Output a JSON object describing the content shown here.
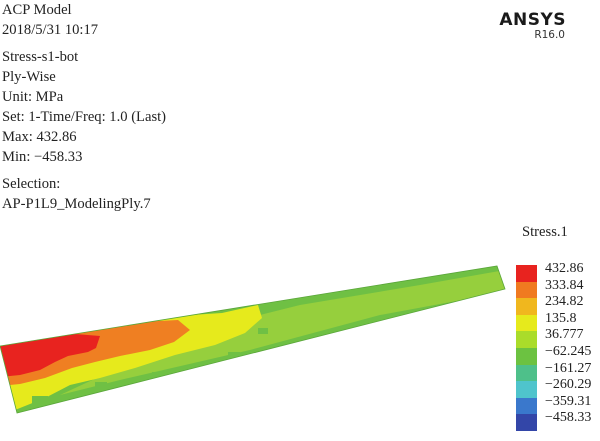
{
  "header": {
    "model": "ACP Model",
    "timestamp": "2018/5/31 10:17",
    "result": "Stress-s1-bot",
    "mode": "Ply-Wise",
    "unit": "Unit: MPa",
    "set": "Set: 1-Time/Freq: 1.0 (Last)",
    "max": "Max: 432.86",
    "min": "Min: −458.33",
    "selection_label": "Selection:",
    "selection_value": "AP-P1L9_ModelingPly.7"
  },
  "logo": {
    "brand": "ANSYS",
    "version": "R16.0"
  },
  "legend": {
    "title": "Stress.1",
    "items": [
      {
        "label": "432.86",
        "color": "#e8231f"
      },
      {
        "label": "333.84",
        "color": "#f07a20"
      },
      {
        "label": "234.82",
        "color": "#f0b71e"
      },
      {
        "label": "135.8",
        "color": "#e6ea1c"
      },
      {
        "label": "36.777",
        "color": "#aadc2a"
      },
      {
        "label": "−62.245",
        "color": "#6cc241"
      },
      {
        "label": "−161.27",
        "color": "#4ec08a"
      },
      {
        "label": "−260.29",
        "color": "#4fc4cc"
      },
      {
        "label": "−359.31",
        "color": "#3a78cc"
      },
      {
        "label": "−458.33",
        "color": "#3346a8"
      }
    ]
  },
  "contour": {
    "colors": {
      "red": "#e8231f",
      "orange": "#ef7f22",
      "yellow": "#e6ea1c",
      "light_green": "#96cf3d",
      "green": "#6fc044"
    }
  }
}
